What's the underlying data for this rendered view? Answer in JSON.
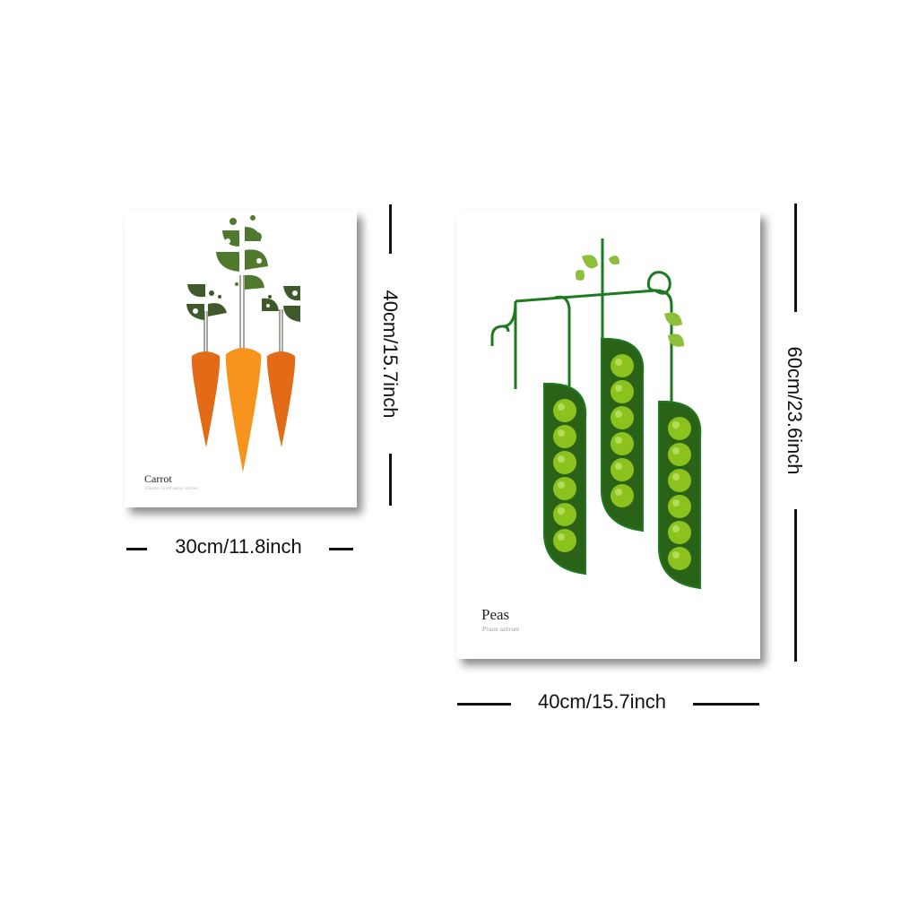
{
  "colors": {
    "carrot_orange_light": "#f7941d",
    "carrot_orange_dark": "#e36a16",
    "leaf_dark_green": "#3f5a2a",
    "leaf_mid_green": "#4f7a2e",
    "pod_dark_green": "#2a6318",
    "stem_green": "#1e7a1e",
    "pea_green": "#8cc21e",
    "light_leaf_green": "#8dbf3a",
    "dimension_line": "#111111"
  },
  "carrot_poster": {
    "title": "Carrot",
    "subtitle": "Daucus carota subsp. sativus",
    "width_label": "30cm/11.8inch",
    "height_label": "40cm/15.7inch"
  },
  "peas_poster": {
    "title": "Peas",
    "subtitle": "Pisum sativum",
    "width_label": "40cm/15.7inch",
    "height_label": "60cm/23.6inch"
  }
}
